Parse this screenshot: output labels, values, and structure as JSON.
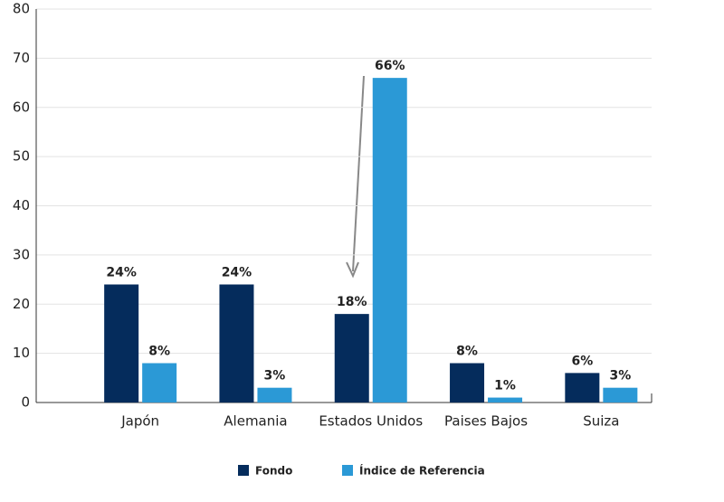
{
  "chart_data": {
    "type": "bar",
    "categories": [
      "Japón",
      "Alemania",
      "Estados Unidos",
      "Paises Bajos",
      "Suiza"
    ],
    "series": [
      {
        "name": "Fondo",
        "color": "#052c5c",
        "values": [
          24,
          24,
          18,
          8,
          6
        ],
        "value_labels": [
          "24%",
          "24%",
          "18%",
          "8%",
          "6%"
        ]
      },
      {
        "name": "Índice de Referencia",
        "color": "#2b99d6",
        "values": [
          8,
          3,
          66,
          1,
          3
        ],
        "value_labels": [
          "8%",
          "3%",
          "66%",
          "1%",
          "3%"
        ]
      }
    ],
    "ylim": [
      0,
      80
    ],
    "yticks": [
      0,
      10,
      20,
      30,
      40,
      50,
      60,
      70,
      80
    ],
    "grid": true
  }
}
